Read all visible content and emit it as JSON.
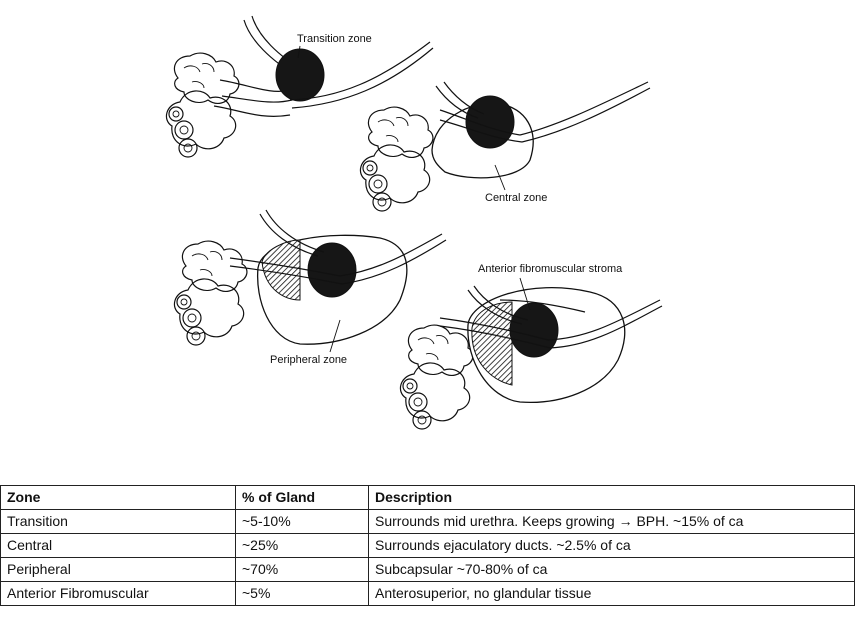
{
  "diagram": {
    "labels": {
      "transition": "Transition zone",
      "central": "Central zone",
      "anterior": "Anterior fibromuscular stroma",
      "peripheral": "Peripheral zone"
    }
  },
  "table": {
    "headers": [
      "Zone",
      "% of Gland",
      "Description"
    ],
    "rows": [
      [
        "Transition",
        "~5-10%",
        "Surrounds mid urethra. Keeps growing → BPH. ~15% of ca"
      ],
      [
        "Central",
        "~25%",
        "Surrounds ejaculatory ducts. ~2.5% of ca"
      ],
      [
        "Peripheral",
        "~70%",
        "Subcapsular ~70-80% of ca"
      ],
      [
        "Anterior Fibromuscular",
        "~5%",
        "Anterosuperior, no glandular tissue"
      ]
    ]
  }
}
